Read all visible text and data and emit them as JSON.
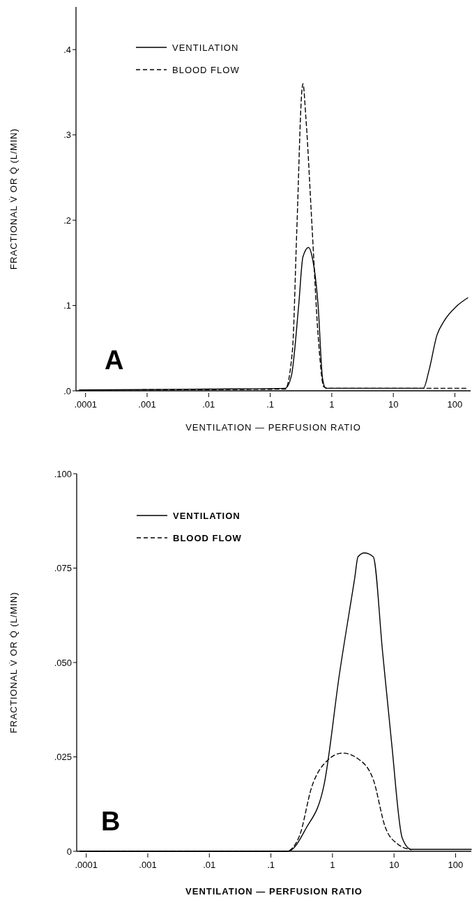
{
  "chart_data": [
    {
      "type": "line",
      "xlabel": "VENTILATION  —  PERFUSION RATIO",
      "ylabel": "FRACTIONAL V̇ OR Q̇  (L/MIN)",
      "log": "x",
      "xlim": [
        7e-05,
        180
      ],
      "xticks": [
        {
          "value": 0.0001,
          "label": ".0001"
        },
        {
          "value": 0.001,
          "label": ".001"
        },
        {
          "value": 0.01,
          "label": ".01"
        },
        {
          "value": 0.1,
          "label": ".1"
        },
        1,
        10,
        100
      ],
      "ylim": [
        0,
        0.45
      ],
      "yticks": [
        {
          "value": 0,
          "label": ".0"
        },
        {
          "value": 0.1,
          "label": ".1"
        },
        {
          "value": 0.2,
          "label": ".2"
        },
        {
          "value": 0.3,
          "label": ".3"
        },
        {
          "value": 0.4,
          "label": ".4"
        }
      ],
      "legend": "top left",
      "annotations": [
        "A"
      ],
      "series": [
        {
          "name": "VENTILATION",
          "color": "#000000",
          "line_style": "solid",
          "x": [
            8e-05,
            0.01,
            0.175,
            0.22,
            0.29,
            0.34,
            0.42,
            0.48,
            0.6,
            0.71,
            0.8,
            30.7,
            38,
            51,
            67,
            106,
            162
          ],
          "values": [
            0.001,
            0.002,
            0.003,
            0.017,
            0.1,
            0.157,
            0.168,
            0.157,
            0.1,
            0.014,
            0.003,
            0.003,
            0.024,
            0.065,
            0.082,
            0.099,
            0.109
          ]
        },
        {
          "name": "BLOOD FLOW",
          "color": "#000000",
          "line_style": "dashed",
          "x": [
            8e-05,
            0.175,
            0.23,
            0.27,
            0.33,
            0.34,
            0.38,
            0.48,
            0.6,
            0.74,
            0.85,
            30.7,
            162
          ],
          "values": [
            0.001,
            0.002,
            0.048,
            0.187,
            0.355,
            0.36,
            0.32,
            0.19,
            0.065,
            0.005,
            0.003,
            0.003,
            0.003
          ]
        }
      ]
    },
    {
      "type": "line",
      "xlabel": "VENTILATION — PERFUSION  RATIO",
      "ylabel": "FRACTIONAL V̇ OR Q̇  (L/MIN)",
      "log": "x",
      "xlim": [
        7e-05,
        180
      ],
      "xticks": [
        {
          "value": 0.0001,
          "label": ".0001"
        },
        {
          "value": 0.001,
          "label": ".001"
        },
        {
          "value": 0.01,
          "label": ".01"
        },
        {
          "value": 0.1,
          "label": ".1"
        },
        1,
        10,
        100
      ],
      "ylim": [
        0,
        0.1
      ],
      "yticks": [
        0,
        {
          "value": 0.025,
          "label": ".025"
        },
        {
          "value": 0.05,
          "label": ".050"
        },
        {
          "value": 0.075,
          "label": ".075"
        },
        {
          "value": 0.1,
          "label": ".100"
        }
      ],
      "legend": "top left",
      "annotations": [
        "B"
      ],
      "series": [
        {
          "name": "VENTILATION",
          "color": "#000000",
          "line_style": "solid",
          "x": [
            8e-05,
            0.19,
            0.37,
            0.73,
            1.3,
            2.3,
            2.6,
            3.3,
            4.6,
            6.5,
            9.1,
            13.6,
            19,
            180
          ],
          "values": [
            0,
            0,
            0.006,
            0.0176,
            0.047,
            0.0724,
            0.078,
            0.079,
            0.078,
            0.053,
            0.029,
            0.0035,
            0.0005,
            0.0005
          ]
        },
        {
          "name": "BLOOD FLOW",
          "color": "#000000",
          "line_style": "dashed",
          "x": [
            8e-05,
            0.18,
            0.29,
            0.46,
            0.82,
            1.46,
            2.6,
            4.6,
            7.2,
            11.5,
            19
          ],
          "values": [
            0,
            0,
            0.004,
            0.017,
            0.024,
            0.026,
            0.0245,
            0.019,
            0.0064,
            0.0019,
            0.0004
          ]
        }
      ]
    }
  ]
}
